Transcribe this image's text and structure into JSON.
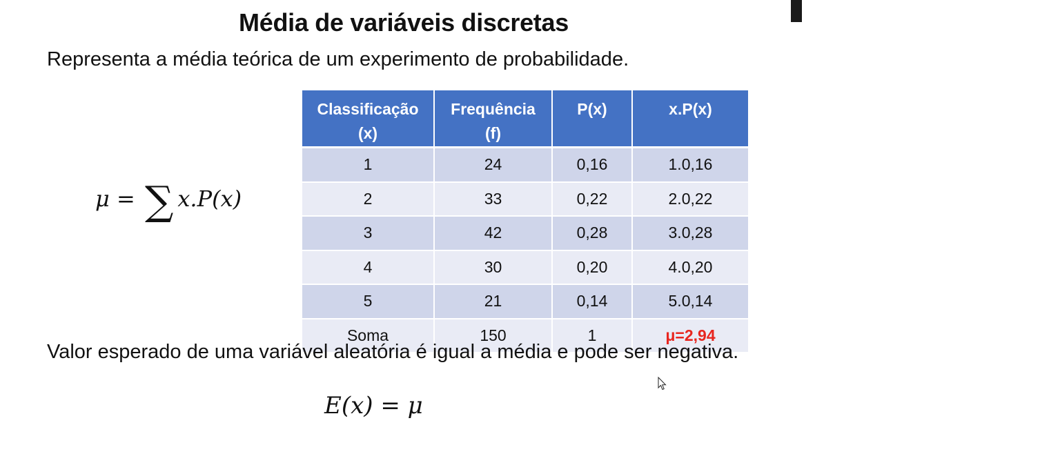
{
  "slide": {
    "title": "Média de variáveis discretas",
    "intro": "Representa a média teórica de um experimento de probabilidade.",
    "outro": "Valor esperado de uma variável aleatória é igual a média e pode ser negativa."
  },
  "formulas": {
    "mean": {
      "lhs": "μ",
      "equals": "=",
      "sigma": "∑",
      "rhs": "x.P(x)"
    },
    "expected": {
      "lhs": "E(x)",
      "equals": "=",
      "rhs": "μ"
    }
  },
  "table": {
    "headers": [
      {
        "line1": "Classificação",
        "line2": "(x)"
      },
      {
        "line1": "Frequência",
        "line2": "(f)"
      },
      {
        "line1": "P(x)",
        "line2": ""
      },
      {
        "line1": "x.P(x)",
        "line2": ""
      }
    ],
    "rows": [
      [
        "1",
        "24",
        "0,16",
        "1.0,16"
      ],
      [
        "2",
        "33",
        "0,22",
        "2.0,22"
      ],
      [
        "3",
        "42",
        "0,28",
        "3.0,28"
      ],
      [
        "4",
        "30",
        "0,20",
        "4.0,20"
      ],
      [
        "5",
        "21",
        "0,14",
        "5.0,14"
      ]
    ],
    "total_row": [
      "Soma",
      "150",
      "1",
      "μ=2,94"
    ]
  },
  "colors": {
    "header_bg": "#4472c4",
    "row_odd": "#cfd5ea",
    "row_even": "#e9ebf5",
    "highlight": "#e8261f"
  },
  "icons": {
    "cursor": "mouse-pointer-icon"
  }
}
